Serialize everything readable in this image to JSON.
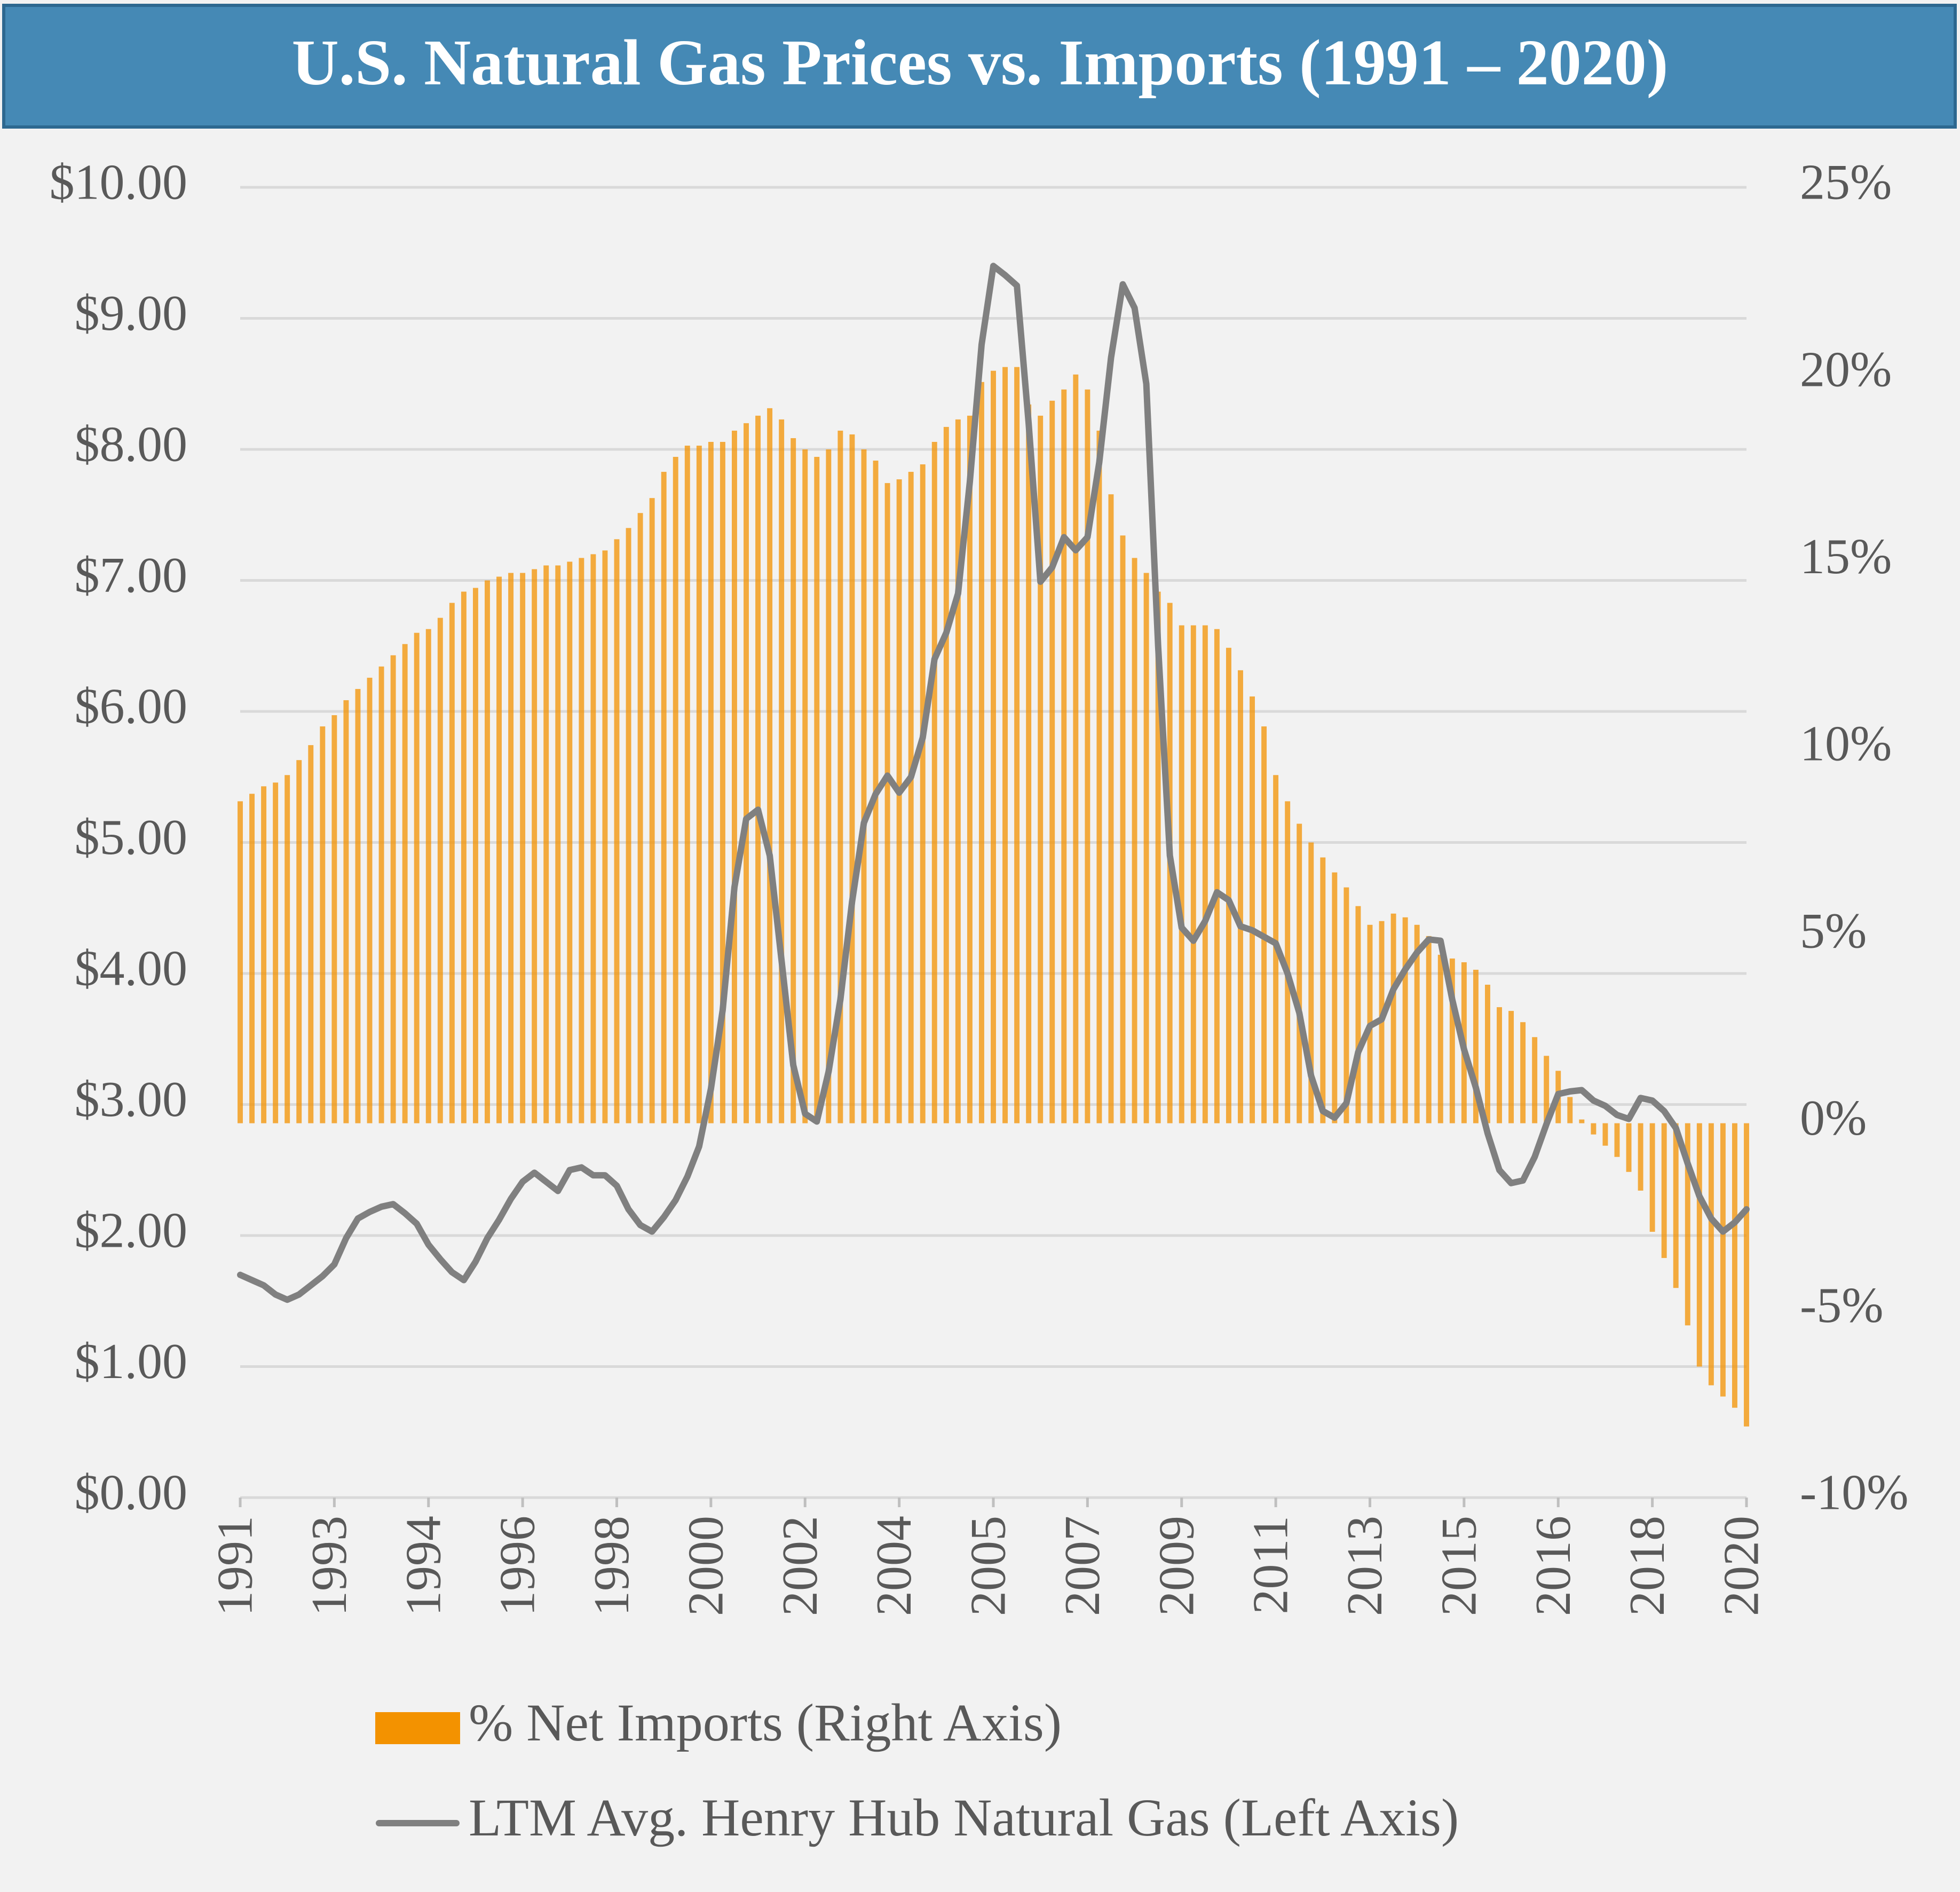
{
  "chart_data": {
    "type": "bar",
    "title": "U.S. Natural Gas Prices vs. Imports (1991 – 2020)",
    "categories": [
      "1991",
      null,
      null,
      null,
      null,
      null,
      null,
      null,
      "1993",
      null,
      null,
      null,
      null,
      null,
      null,
      null,
      "1994",
      null,
      null,
      null,
      null,
      null,
      null,
      null,
      "1996",
      null,
      null,
      null,
      null,
      null,
      null,
      null,
      "1998",
      null,
      null,
      null,
      null,
      null,
      null,
      null,
      "2000",
      null,
      null,
      null,
      null,
      null,
      null,
      null,
      "2002",
      null,
      null,
      null,
      null,
      null,
      null,
      null,
      "2004",
      null,
      null,
      null,
      null,
      null,
      null,
      null,
      "2005",
      null,
      null,
      null,
      null,
      null,
      null,
      null,
      "2007",
      null,
      null,
      null,
      null,
      null,
      null,
      null,
      "2009",
      null,
      null,
      null,
      null,
      null,
      null,
      null,
      "2011",
      null,
      null,
      null,
      null,
      null,
      null,
      null,
      "2013",
      null,
      null,
      null,
      null,
      null,
      null,
      null,
      "2015",
      null,
      null,
      null,
      null,
      null,
      null,
      null,
      "2016",
      null,
      null,
      null,
      null,
      null,
      null,
      null,
      "2018",
      null,
      null,
      null,
      null,
      null,
      null,
      null,
      "2020"
    ],
    "series": [
      {
        "name": "% Net Imports (Right Axis)",
        "type": "bar",
        "axis": "y2",
        "color": "#f39200",
        "values": [
          8.6,
          8.8,
          9.0,
          9.1,
          9.3,
          9.7,
          10.1,
          10.6,
          10.9,
          11.3,
          11.6,
          11.9,
          12.2,
          12.5,
          12.8,
          13.1,
          13.2,
          13.5,
          13.9,
          14.2,
          14.3,
          14.5,
          14.6,
          14.7,
          14.7,
          14.8,
          14.9,
          14.9,
          15.0,
          15.1,
          15.2,
          15.3,
          15.6,
          15.9,
          16.3,
          16.7,
          17.4,
          17.8,
          18.1,
          18.1,
          18.2,
          18.2,
          18.5,
          18.7,
          18.9,
          19.1,
          18.8,
          18.3,
          18.0,
          17.8,
          18.0,
          18.5,
          18.4,
          18.0,
          17.7,
          17.1,
          17.2,
          17.4,
          17.6,
          18.2,
          18.6,
          18.8,
          18.9,
          19.8,
          20.1,
          20.2,
          20.2,
          19.2,
          18.9,
          19.3,
          19.6,
          20.0,
          19.6,
          18.5,
          16.8,
          15.7,
          15.1,
          14.7,
          14.2,
          13.9,
          13.3,
          13.3,
          13.3,
          13.2,
          12.7,
          12.1,
          11.4,
          10.6,
          9.3,
          8.6,
          8.0,
          7.5,
          7.1,
          6.7,
          6.3,
          5.8,
          5.3,
          5.4,
          5.6,
          5.5,
          5.3,
          5.0,
          4.5,
          4.4,
          4.3,
          4.1,
          3.7,
          3.1,
          3.0,
          2.7,
          2.3,
          1.8,
          1.4,
          0.7,
          0.1,
          -0.3,
          -0.6,
          -0.9,
          -1.3,
          -1.8,
          -2.9,
          -3.6,
          -4.4,
          -5.4,
          -6.5,
          -7.0,
          -7.3,
          -7.6,
          -8.1
        ]
      },
      {
        "name": "LTM Avg. Henry Hub Natural Gas (Left Axis)",
        "type": "line",
        "axis": "y",
        "color": "#808080",
        "values": [
          1.7,
          1.66,
          1.62,
          1.55,
          1.51,
          1.55,
          1.62,
          1.69,
          1.78,
          1.98,
          2.13,
          2.18,
          2.22,
          2.24,
          2.17,
          2.09,
          1.93,
          1.82,
          1.72,
          1.66,
          1.8,
          1.98,
          2.12,
          2.28,
          2.41,
          2.48,
          2.41,
          2.34,
          2.5,
          2.52,
          2.46,
          2.46,
          2.38,
          2.2,
          2.08,
          2.03,
          2.14,
          2.27,
          2.45,
          2.68,
          3.12,
          3.72,
          4.66,
          5.18,
          5.25,
          4.9,
          4.1,
          3.3,
          2.93,
          2.87,
          3.25,
          3.8,
          4.55,
          5.15,
          5.37,
          5.51,
          5.38,
          5.5,
          5.8,
          6.4,
          6.6,
          6.9,
          7.75,
          8.8,
          9.4,
          9.33,
          9.25,
          8.2,
          6.99,
          7.1,
          7.33,
          7.23,
          7.33,
          7.9,
          8.7,
          9.26,
          9.08,
          8.5,
          6.5,
          4.9,
          4.35,
          4.25,
          4.4,
          4.62,
          4.56,
          4.36,
          4.33,
          4.28,
          4.23,
          4.0,
          3.7,
          3.22,
          2.95,
          2.9,
          3.01,
          3.4,
          3.6,
          3.65,
          3.88,
          4.03,
          4.16,
          4.26,
          4.25,
          3.8,
          3.42,
          3.13,
          2.78,
          2.5,
          2.4,
          2.42,
          2.6,
          2.85,
          3.08,
          3.1,
          3.11,
          3.03,
          2.99,
          2.92,
          2.89,
          3.05,
          3.03,
          2.95,
          2.82,
          2.55,
          2.3,
          2.13,
          2.03,
          2.1,
          2.2
        ]
      }
    ],
    "ylim": [
      0,
      10
    ],
    "yticks": [
      {
        "value": 0,
        "label": "$0.00"
      },
      {
        "value": 1,
        "label": "$1.00"
      },
      {
        "value": 2,
        "label": "$2.00"
      },
      {
        "value": 3,
        "label": "$3.00"
      },
      {
        "value": 4,
        "label": "$4.00"
      },
      {
        "value": 5,
        "label": "$5.00"
      },
      {
        "value": 6,
        "label": "$6.00"
      },
      {
        "value": 7,
        "label": "$7.00"
      },
      {
        "value": 8,
        "label": "$8.00"
      },
      {
        "value": 9,
        "label": "$9.00"
      },
      {
        "value": 10,
        "label": "$10.00"
      }
    ],
    "y2lim": [
      -10,
      25
    ],
    "y2ticks": [
      {
        "value": -10,
        "label": "-10%"
      },
      {
        "value": -5,
        "label": "-5%"
      },
      {
        "value": 0,
        "label": "0%"
      },
      {
        "value": 5,
        "label": "5%"
      },
      {
        "value": 10,
        "label": "10%"
      },
      {
        "value": 15,
        "label": "15%"
      },
      {
        "value": 20,
        "label": "20%"
      },
      {
        "value": 25,
        "label": "25%"
      }
    ],
    "grid": true,
    "legend": "bottom"
  }
}
